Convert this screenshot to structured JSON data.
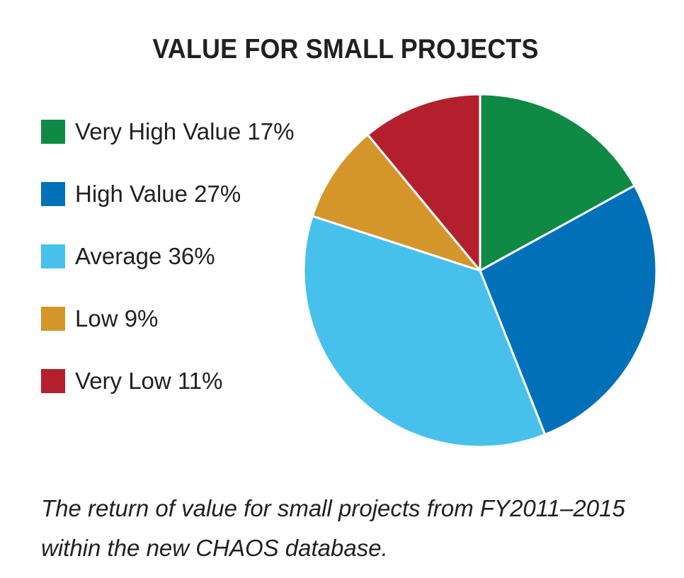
{
  "chart_data": {
    "type": "pie",
    "title": "VALUE FOR SMALL PROJECTS",
    "slices": [
      {
        "label": "Very High Value 17%",
        "category": "Very High Value",
        "value": 17,
        "color": "#0f8a45"
      },
      {
        "label": "High Value 27%",
        "category": "High Value",
        "value": 27,
        "color": "#0071b9"
      },
      {
        "label": "Average 36%",
        "category": "Average",
        "value": 36,
        "color": "#47c1eb"
      },
      {
        "label": "Low 9%",
        "category": "Low",
        "value": 9,
        "color": "#d4962a"
      },
      {
        "label": "Very Low 11%",
        "category": "Very Low",
        "value": 11,
        "color": "#b41f2e"
      }
    ],
    "legend_placement": "left",
    "start_angle_deg": 0,
    "direction": "clockwise"
  },
  "caption": "The return of value for small projects from FY2011–2015 within the new CHAOS database."
}
